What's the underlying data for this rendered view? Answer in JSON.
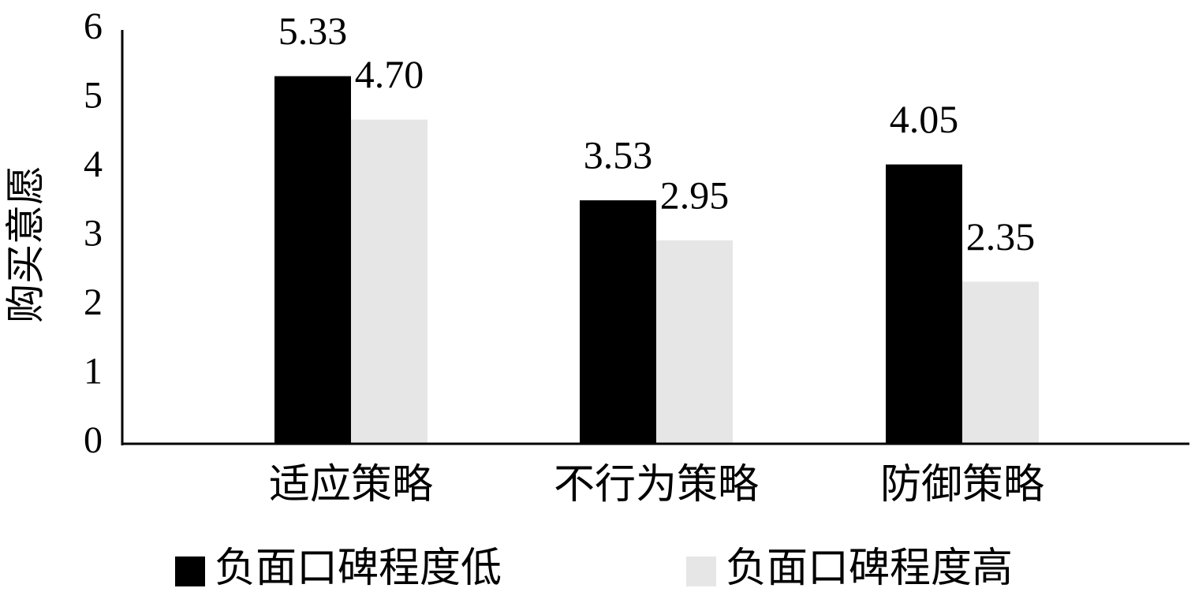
{
  "chart_data": {
    "type": "bar",
    "y_label": "购买意愿",
    "categories": [
      "适应策略",
      "不行为策略",
      "防御策略"
    ],
    "series": [
      {
        "name": "负面口碑程度低",
        "color": "#000000",
        "values": [
          5.33,
          3.53,
          4.05
        ],
        "value_labels": [
          "5.33",
          "3.53",
          "4.05"
        ]
      },
      {
        "name": "负面口碑程度高",
        "color": "#e6e6e6",
        "values": [
          4.7,
          2.95,
          2.35
        ],
        "value_labels": [
          "4.70",
          "2.95",
          "2.35"
        ]
      }
    ],
    "ylim": [
      0,
      6
    ],
    "yticks": [
      0,
      1,
      2,
      3,
      4,
      5,
      6
    ],
    "grid": false,
    "legend": "bottom"
  }
}
